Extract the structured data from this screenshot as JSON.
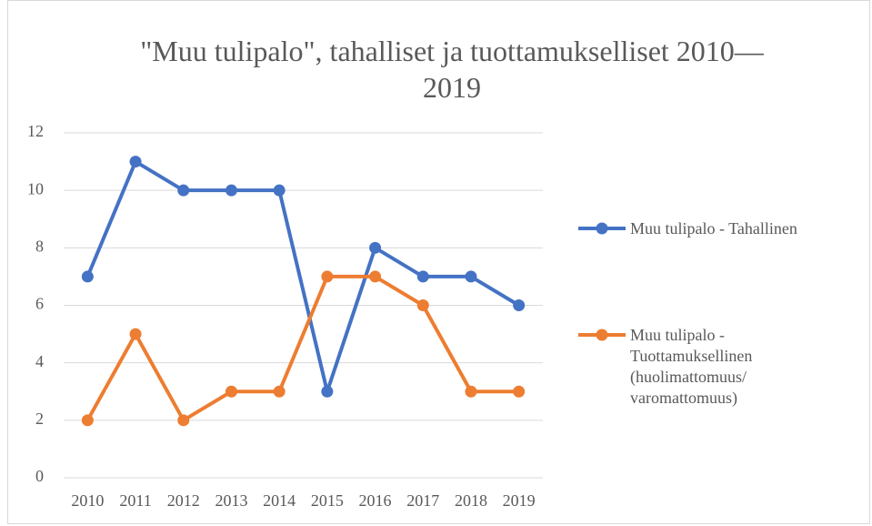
{
  "chart_data": {
    "type": "line",
    "title": "\"Muu tulipalo\", tahalliset ja tuottamukselliset 2010—2019",
    "categories": [
      "2010",
      "2011",
      "2012",
      "2013",
      "2014",
      "2015",
      "2016",
      "2017",
      "2018",
      "2019"
    ],
    "series": [
      {
        "name": "Muu tulipalo - Tahallinen",
        "color": "#4472c4",
        "values": [
          7,
          11,
          10,
          10,
          10,
          3,
          8,
          7,
          7,
          6
        ]
      },
      {
        "name": "Muu tulipalo - Tuottamuksellinen (huolimattomuus/ varomattomuus)",
        "color": "#ed7d31",
        "values": [
          2,
          5,
          2,
          3,
          3,
          7,
          7,
          6,
          3,
          3
        ]
      }
    ],
    "ylim": [
      0,
      12
    ],
    "yticks": [
      0,
      2,
      4,
      6,
      8,
      10,
      12
    ],
    "grid": true,
    "legend": "right"
  }
}
